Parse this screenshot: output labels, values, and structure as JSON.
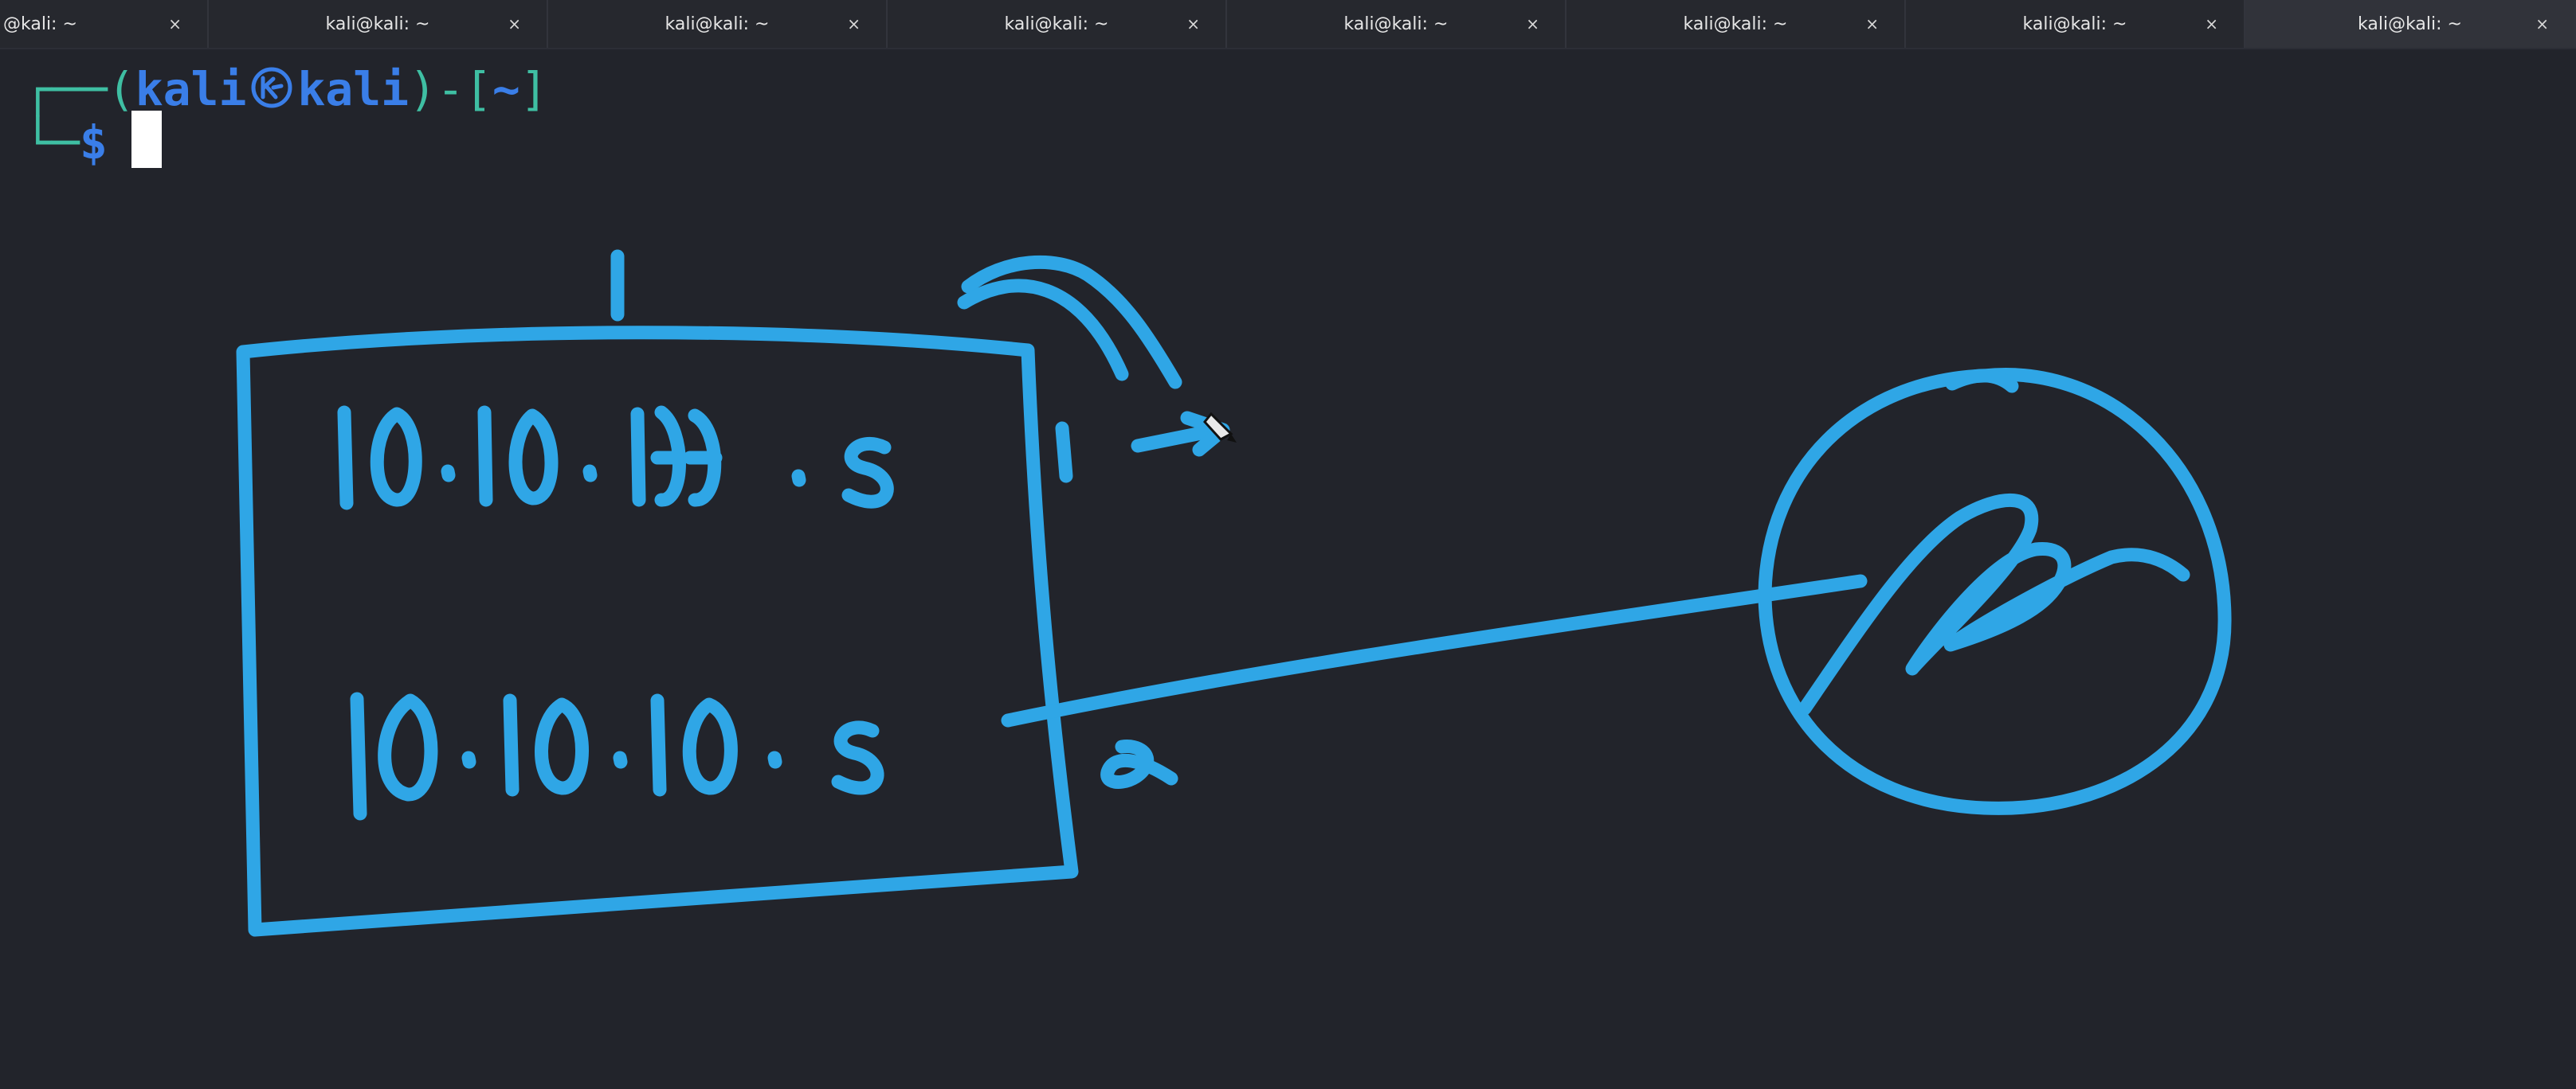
{
  "window": {
    "tabs": [
      {
        "label": "@kali: ~",
        "active": false
      },
      {
        "label": "kali@kali: ~",
        "active": false
      },
      {
        "label": "kali@kali: ~",
        "active": false
      },
      {
        "label": "kali@kali: ~",
        "active": false
      },
      {
        "label": "kali@kali: ~",
        "active": false
      },
      {
        "label": "kali@kali: ~",
        "active": false
      },
      {
        "label": "kali@kali: ~",
        "active": false
      },
      {
        "label": "kali@kali: ~",
        "active": true
      }
    ],
    "close_glyph": "×"
  },
  "terminal": {
    "prompt": {
      "user": "kali",
      "symbol_icon": "kali-dragon-icon",
      "host": "kali",
      "cwd": "~",
      "dollar": "$"
    }
  },
  "annotation": {
    "ip_top": "10.10.111.5",
    "ip_bottom": "10.10.10.5",
    "interface_1": "1",
    "interface_2": "2",
    "ink_color": "#2fa6e6"
  },
  "colors": {
    "background": "#22242b",
    "prompt_blue": "#3a7ee8",
    "prompt_frame": "#3fbfa3"
  }
}
